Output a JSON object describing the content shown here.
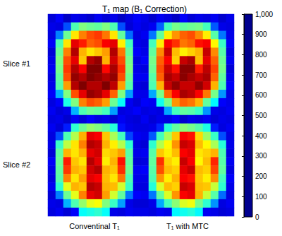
{
  "chart_data": {
    "type": "heatmap",
    "title": "T₁ map (B₁ Correction)",
    "rows": [
      "Slice #1",
      "Slice #2"
    ],
    "columns": [
      "Conventinal T₁",
      "T₁ with MTC"
    ],
    "cells": [
      [
        [
          [
            80,
            120,
            60,
            100,
            90,
            70,
            110,
            80,
            100,
            60,
            90,
            120
          ],
          [
            100,
            90,
            200,
            450,
            500,
            480,
            470,
            500,
            450,
            200,
            80,
            110
          ],
          [
            90,
            250,
            480,
            650,
            750,
            800,
            820,
            760,
            650,
            470,
            230,
            90
          ],
          [
            120,
            450,
            650,
            900,
            850,
            780,
            800,
            880,
            900,
            640,
            440,
            100
          ],
          [
            80,
            480,
            750,
            950,
            700,
            650,
            680,
            720,
            950,
            760,
            470,
            120
          ],
          [
            100,
            500,
            800,
            900,
            680,
            950,
            980,
            700,
            920,
            800,
            490,
            90
          ],
          [
            110,
            490,
            820,
            950,
            880,
            1000,
            1000,
            870,
            960,
            830,
            500,
            100
          ],
          [
            90,
            470,
            800,
            980,
            950,
            1000,
            980,
            950,
            980,
            800,
            480,
            110
          ],
          [
            100,
            460,
            720,
            950,
            1000,
            950,
            950,
            1000,
            940,
            720,
            460,
            90
          ],
          [
            120,
            300,
            500,
            800,
            900,
            980,
            960,
            900,
            780,
            500,
            280,
            100
          ],
          [
            90,
            120,
            400,
            500,
            750,
            800,
            780,
            720,
            480,
            380,
            110,
            80
          ],
          [
            110,
            80,
            100,
            300,
            450,
            480,
            470,
            440,
            280,
            90,
            100,
            120
          ]
        ],
        [
          [
            100,
            70,
            110,
            90,
            60,
            120,
            80,
            100,
            90,
            110,
            70,
            100
          ],
          [
            90,
            110,
            220,
            440,
            490,
            470,
            480,
            490,
            440,
            210,
            100,
            90
          ],
          [
            110,
            240,
            470,
            640,
            730,
            780,
            800,
            740,
            640,
            460,
            240,
            100
          ],
          [
            90,
            440,
            640,
            880,
            830,
            760,
            780,
            860,
            880,
            630,
            430,
            120
          ],
          [
            100,
            470,
            740,
            930,
            690,
            640,
            670,
            700,
            930,
            740,
            460,
            90
          ],
          [
            120,
            490,
            780,
            880,
            670,
            930,
            960,
            690,
            900,
            780,
            480,
            110
          ],
          [
            90,
            480,
            800,
            930,
            860,
            990,
            990,
            850,
            940,
            810,
            490,
            80
          ],
          [
            110,
            460,
            780,
            960,
            930,
            990,
            960,
            930,
            960,
            780,
            470,
            100
          ],
          [
            80,
            450,
            700,
            930,
            980,
            930,
            930,
            980,
            920,
            700,
            450,
            120
          ],
          [
            100,
            290,
            490,
            780,
            880,
            960,
            940,
            880,
            760,
            490,
            270,
            90
          ],
          [
            120,
            110,
            390,
            490,
            730,
            780,
            760,
            700,
            470,
            370,
            120,
            100
          ],
          [
            90,
            100,
            90,
            290,
            440,
            470,
            460,
            430,
            270,
            100,
            90,
            110
          ]
        ]
      ],
      [
        [
          [
            90,
            100,
            70,
            110,
            80,
            120,
            90,
            100,
            70,
            110,
            90,
            80
          ],
          [
            110,
            80,
            150,
            420,
            480,
            520,
            500,
            470,
            410,
            140,
            100,
            90
          ],
          [
            90,
            200,
            450,
            550,
            700,
            900,
            880,
            680,
            540,
            440,
            190,
            110
          ],
          [
            100,
            430,
            560,
            650,
            750,
            950,
            930,
            700,
            640,
            550,
            420,
            90
          ],
          [
            80,
            470,
            700,
            650,
            700,
            900,
            920,
            660,
            680,
            720,
            460,
            100
          ],
          [
            120,
            480,
            850,
            680,
            650,
            950,
            900,
            640,
            700,
            860,
            470,
            80
          ],
          [
            100,
            470,
            820,
            700,
            680,
            920,
            950,
            700,
            680,
            830,
            480,
            110
          ],
          [
            90,
            460,
            750,
            650,
            720,
            900,
            880,
            690,
            650,
            760,
            450,
            100
          ],
          [
            110,
            420,
            600,
            700,
            680,
            950,
            930,
            700,
            690,
            580,
            430,
            90
          ],
          [
            80,
            250,
            480,
            600,
            750,
            900,
            920,
            720,
            580,
            470,
            240,
            120
          ],
          [
            100,
            90,
            300,
            450,
            520,
            600,
            620,
            500,
            430,
            280,
            100,
            80
          ],
          [
            90,
            110,
            80,
            120,
            380,
            400,
            420,
            380,
            100,
            90,
            110,
            100
          ]
        ],
        [
          [
            110,
            80,
            100,
            90,
            120,
            70,
            100,
            90,
            110,
            80,
            100,
            90
          ],
          [
            90,
            100,
            160,
            410,
            470,
            510,
            490,
            460,
            400,
            150,
            90,
            110
          ],
          [
            100,
            210,
            440,
            540,
            680,
            880,
            860,
            660,
            530,
            430,
            200,
            90
          ],
          [
            80,
            420,
            550,
            630,
            730,
            930,
            910,
            690,
            630,
            540,
            410,
            100
          ],
          [
            110,
            460,
            680,
            640,
            690,
            880,
            900,
            650,
            670,
            700,
            450,
            90
          ],
          [
            90,
            470,
            830,
            670,
            640,
            930,
            880,
            630,
            690,
            840,
            460,
            110
          ],
          [
            120,
            460,
            800,
            690,
            670,
            900,
            930,
            690,
            670,
            810,
            470,
            90
          ],
          [
            100,
            450,
            730,
            640,
            700,
            880,
            860,
            680,
            640,
            740,
            440,
            120
          ],
          [
            90,
            410,
            590,
            690,
            670,
            930,
            910,
            690,
            680,
            570,
            420,
            100
          ],
          [
            110,
            240,
            470,
            590,
            730,
            880,
            900,
            700,
            570,
            460,
            230,
            90
          ],
          [
            80,
            100,
            290,
            440,
            510,
            590,
            610,
            490,
            420,
            270,
            90,
            110
          ],
          [
            100,
            90,
            110,
            100,
            370,
            390,
            410,
            370,
            110,
            100,
            80,
            90
          ]
        ]
      ]
    ],
    "colorbar_range": [
      0,
      1000
    ],
    "colorbar_ticks": [
      0,
      100,
      200,
      300,
      400,
      500,
      600,
      700,
      800,
      900,
      1000
    ]
  }
}
